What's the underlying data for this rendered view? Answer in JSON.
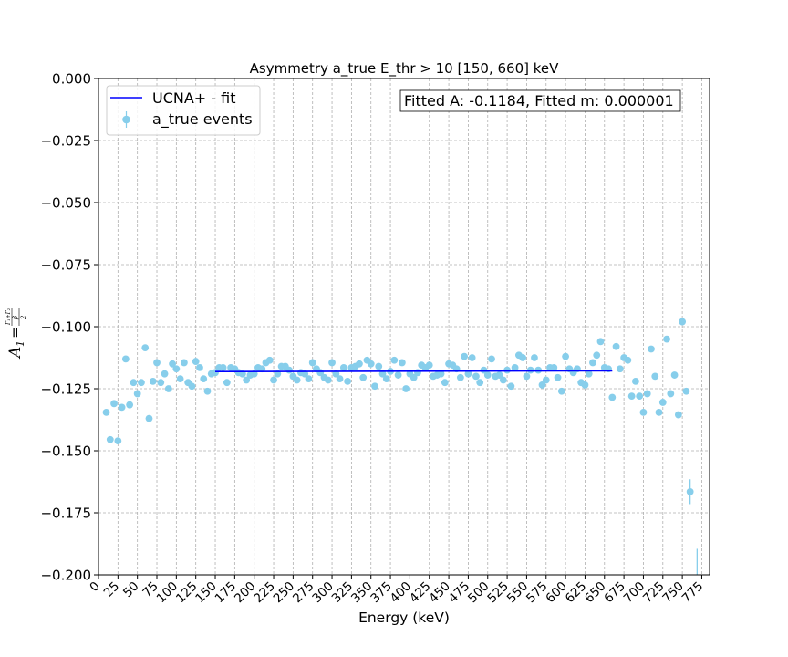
{
  "chart_data": {
    "type": "scatter",
    "title": "Asymmetry a_true E_thr > 10 [150, 660] keV",
    "xlabel": "Energy (keV)",
    "ylabel": {
      "main": "A",
      "sub": "1",
      "eq": "=",
      "frac_top": "Γ₁+Γ₂",
      "frac_mid": "β",
      "frac_bottom": "2"
    },
    "xlim": [
      0,
      785
    ],
    "ylim": [
      -0.2,
      0.0
    ],
    "grid": true,
    "x_ticks": [
      0,
      25,
      50,
      75,
      100,
      125,
      150,
      175,
      200,
      225,
      250,
      275,
      300,
      325,
      350,
      375,
      400,
      425,
      450,
      475,
      500,
      525,
      550,
      575,
      600,
      625,
      650,
      675,
      700,
      725,
      750,
      775
    ],
    "y_ticks": [
      0.0,
      -0.025,
      -0.05,
      -0.075,
      -0.1,
      -0.125,
      -0.15,
      -0.175,
      -0.2
    ],
    "y_tick_labels": [
      "0.000",
      "−0.025",
      "−0.050",
      "−0.075",
      "−0.100",
      "−0.125",
      "−0.150",
      "−0.175",
      "−0.200"
    ],
    "legend_position": "top-left",
    "annotation": "Fitted A: -0.1184, Fitted m: 0.000001",
    "series": [
      {
        "name": "UCNA+ - fit",
        "type": "line",
        "color": "#0000ff",
        "x": [
          150,
          660
        ],
        "y": [
          -0.1181,
          -0.1178
        ]
      },
      {
        "name": "a_true events",
        "type": "scatter",
        "color": "#87ceeb",
        "points": [
          [
            10,
            -0.1345
          ],
          [
            15,
            -0.1455
          ],
          [
            20,
            -0.131
          ],
          [
            25,
            -0.146
          ],
          [
            30,
            -0.1325
          ],
          [
            35,
            -0.113
          ],
          [
            40,
            -0.1315
          ],
          [
            45,
            -0.1225
          ],
          [
            50,
            -0.127
          ],
          [
            55,
            -0.1225
          ],
          [
            60,
            -0.1085
          ],
          [
            65,
            -0.137
          ],
          [
            70,
            -0.122
          ],
          [
            75,
            -0.1145
          ],
          [
            80,
            -0.1225
          ],
          [
            85,
            -0.119
          ],
          [
            90,
            -0.125
          ],
          [
            95,
            -0.115
          ],
          [
            100,
            -0.117
          ],
          [
            105,
            -0.121
          ],
          [
            110,
            -0.1145
          ],
          [
            115,
            -0.1225
          ],
          [
            120,
            -0.124
          ],
          [
            125,
            -0.114
          ],
          [
            130,
            -0.1165
          ],
          [
            135,
            -0.121
          ],
          [
            140,
            -0.126
          ],
          [
            145,
            -0.119
          ],
          [
            150,
            -0.1185
          ],
          [
            155,
            -0.1165
          ],
          [
            160,
            -0.1165
          ],
          [
            165,
            -0.1225
          ],
          [
            170,
            -0.1165
          ],
          [
            175,
            -0.117
          ],
          [
            180,
            -0.1185
          ],
          [
            185,
            -0.119
          ],
          [
            190,
            -0.1215
          ],
          [
            195,
            -0.1195
          ],
          [
            200,
            -0.119
          ],
          [
            205,
            -0.1165
          ],
          [
            210,
            -0.117
          ],
          [
            215,
            -0.1145
          ],
          [
            220,
            -0.1135
          ],
          [
            225,
            -0.1215
          ],
          [
            230,
            -0.119
          ],
          [
            235,
            -0.116
          ],
          [
            240,
            -0.116
          ],
          [
            245,
            -0.1175
          ],
          [
            250,
            -0.12
          ],
          [
            255,
            -0.1215
          ],
          [
            260,
            -0.1185
          ],
          [
            265,
            -0.119
          ],
          [
            270,
            -0.121
          ],
          [
            275,
            -0.1145
          ],
          [
            280,
            -0.117
          ],
          [
            285,
            -0.1185
          ],
          [
            290,
            -0.1205
          ],
          [
            295,
            -0.1215
          ],
          [
            300,
            -0.1145
          ],
          [
            305,
            -0.119
          ],
          [
            310,
            -0.121
          ],
          [
            315,
            -0.1165
          ],
          [
            320,
            -0.122
          ],
          [
            325,
            -0.1165
          ],
          [
            330,
            -0.116
          ],
          [
            335,
            -0.115
          ],
          [
            340,
            -0.1205
          ],
          [
            345,
            -0.1135
          ],
          [
            350,
            -0.115
          ],
          [
            355,
            -0.124
          ],
          [
            360,
            -0.116
          ],
          [
            365,
            -0.119
          ],
          [
            370,
            -0.121
          ],
          [
            375,
            -0.118
          ],
          [
            380,
            -0.1135
          ],
          [
            385,
            -0.1195
          ],
          [
            390,
            -0.1145
          ],
          [
            395,
            -0.125
          ],
          [
            400,
            -0.119
          ],
          [
            405,
            -0.1205
          ],
          [
            410,
            -0.1185
          ],
          [
            415,
            -0.1155
          ],
          [
            420,
            -0.1165
          ],
          [
            425,
            -0.1155
          ],
          [
            430,
            -0.12
          ],
          [
            435,
            -0.1195
          ],
          [
            440,
            -0.119
          ],
          [
            445,
            -0.1225
          ],
          [
            450,
            -0.115
          ],
          [
            455,
            -0.1155
          ],
          [
            460,
            -0.117
          ],
          [
            465,
            -0.1205
          ],
          [
            470,
            -0.112
          ],
          [
            475,
            -0.119
          ],
          [
            480,
            -0.1125
          ],
          [
            485,
            -0.12
          ],
          [
            490,
            -0.1225
          ],
          [
            495,
            -0.1175
          ],
          [
            500,
            -0.1195
          ],
          [
            505,
            -0.113
          ],
          [
            510,
            -0.12
          ],
          [
            515,
            -0.1195
          ],
          [
            520,
            -0.1215
          ],
          [
            525,
            -0.1175
          ],
          [
            530,
            -0.124
          ],
          [
            535,
            -0.1165
          ],
          [
            540,
            -0.1115
          ],
          [
            545,
            -0.1125
          ],
          [
            550,
            -0.12
          ],
          [
            555,
            -0.1175
          ],
          [
            560,
            -0.1125
          ],
          [
            565,
            -0.1175
          ],
          [
            570,
            -0.1235
          ],
          [
            575,
            -0.1215
          ],
          [
            580,
            -0.1165
          ],
          [
            585,
            -0.1165
          ],
          [
            590,
            -0.1205
          ],
          [
            595,
            -0.126
          ],
          [
            600,
            -0.112
          ],
          [
            605,
            -0.117
          ],
          [
            610,
            -0.1185
          ],
          [
            615,
            -0.117
          ],
          [
            620,
            -0.1225
          ],
          [
            625,
            -0.1235
          ],
          [
            630,
            -0.119
          ],
          [
            635,
            -0.1145
          ],
          [
            640,
            -0.1115
          ],
          [
            645,
            -0.106
          ],
          [
            650,
            -0.1165
          ],
          [
            655,
            -0.117
          ],
          [
            660,
            -0.1285
          ],
          [
            665,
            -0.108
          ],
          [
            670,
            -0.117
          ],
          [
            675,
            -0.1125
          ],
          [
            680,
            -0.1135
          ],
          [
            685,
            -0.128
          ],
          [
            690,
            -0.122
          ],
          [
            695,
            -0.128
          ],
          [
            700,
            -0.1345
          ],
          [
            705,
            -0.127
          ],
          [
            710,
            -0.109
          ],
          [
            715,
            -0.12
          ],
          [
            720,
            -0.1345
          ],
          [
            725,
            -0.1305
          ],
          [
            730,
            -0.105
          ],
          [
            735,
            -0.127
          ],
          [
            740,
            -0.1195
          ],
          [
            745,
            -0.1355
          ],
          [
            750,
            -0.098
          ],
          [
            755,
            -0.126
          ],
          [
            760,
            -0.1665
          ]
        ],
        "errorbars": [
          {
            "x": 760,
            "ylow": -0.1715,
            "yhigh": -0.1615
          },
          {
            "x": 769,
            "ylow": -0.2,
            "yhigh": -0.1895
          }
        ]
      }
    ]
  }
}
